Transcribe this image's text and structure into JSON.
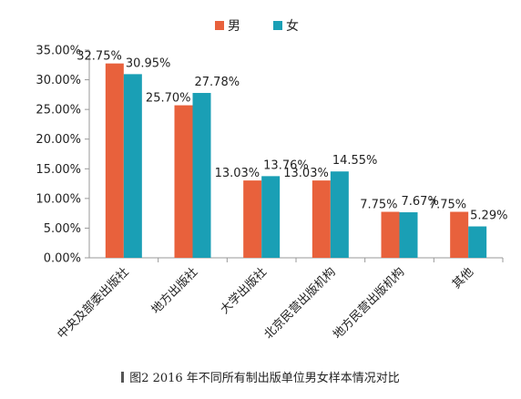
{
  "chart_data": {
    "type": "bar",
    "categories": [
      "中央及部委出版社",
      "地方出版社",
      "大学出版社",
      "北京民营出版机构",
      "地方民营出版机构",
      "其他"
    ],
    "series": [
      {
        "name": "男",
        "color": "#e8613c",
        "values": [
          32.75,
          25.7,
          13.03,
          13.03,
          7.75,
          7.75
        ],
        "labels": [
          "32.75%",
          "25.70%",
          "13.03%",
          "13.03%",
          "7.75%",
          "7.75%"
        ]
      },
      {
        "name": "女",
        "color": "#1a9fb5",
        "values": [
          30.95,
          27.78,
          13.76,
          14.55,
          7.67,
          5.29
        ],
        "labels": [
          "30.95%",
          "27.78%",
          "13.76%",
          "14.55%",
          "7.67%",
          "5.29%"
        ]
      }
    ],
    "ylim": [
      0,
      35
    ],
    "yticks": [
      0,
      5,
      10,
      15,
      20,
      25,
      30,
      35
    ],
    "ytick_labels": [
      "0.00%",
      "5.00%",
      "10.00%",
      "15.00%",
      "20.00%",
      "25.00%",
      "30.00%",
      "35.00%"
    ],
    "grid": false,
    "legend_position": "top-center"
  },
  "caption": {
    "text": "图2 2016 年不同所有制出版单位男女样本情况对比"
  }
}
